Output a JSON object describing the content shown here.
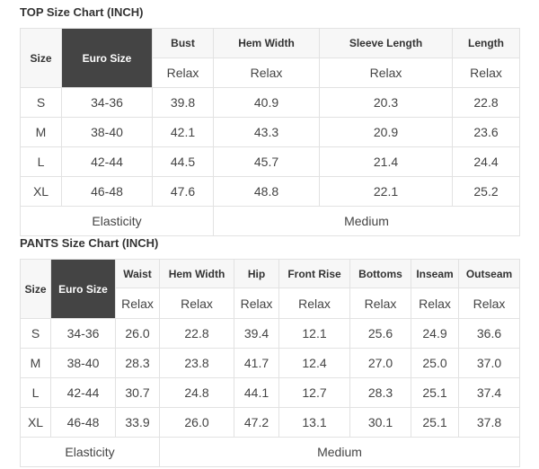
{
  "top": {
    "title": "TOP Size Chart (INCH)",
    "headers": [
      "Size",
      "Euro Size",
      "Bust",
      "Hem Width",
      "Sleeve Length",
      "Length"
    ],
    "fit_label": "Relax",
    "rows": [
      [
        "S",
        "34-36",
        "39.8",
        "40.9",
        "20.3",
        "22.8"
      ],
      [
        "M",
        "38-40",
        "42.1",
        "43.3",
        "20.9",
        "23.6"
      ],
      [
        "L",
        "42-44",
        "44.5",
        "45.7",
        "21.4",
        "24.4"
      ],
      [
        "XL",
        "46-48",
        "47.6",
        "48.8",
        "22.1",
        "25.2"
      ]
    ],
    "elasticity_label": "Elasticity",
    "elasticity_value": "Medium"
  },
  "pants": {
    "title": "PANTS Size Chart (INCH)",
    "headers": [
      "Size",
      "Euro Size",
      "Waist",
      "Hem Width",
      "Hip",
      "Front Rise",
      "Bottoms",
      "Inseam",
      "Outseam"
    ],
    "fit_label": "Relax",
    "rows": [
      [
        "S",
        "34-36",
        "26.0",
        "22.8",
        "39.4",
        "12.1",
        "25.6",
        "24.9",
        "36.6"
      ],
      [
        "M",
        "38-40",
        "28.3",
        "23.8",
        "41.7",
        "12.4",
        "27.0",
        "25.0",
        "37.0"
      ],
      [
        "L",
        "42-44",
        "30.7",
        "24.8",
        "44.1",
        "12.7",
        "28.3",
        "25.1",
        "37.4"
      ],
      [
        "XL",
        "46-48",
        "33.9",
        "26.0",
        "47.2",
        "13.1",
        "30.1",
        "25.1",
        "37.8"
      ]
    ],
    "elasticity_label": "Elasticity",
    "elasticity_value": "Medium"
  }
}
